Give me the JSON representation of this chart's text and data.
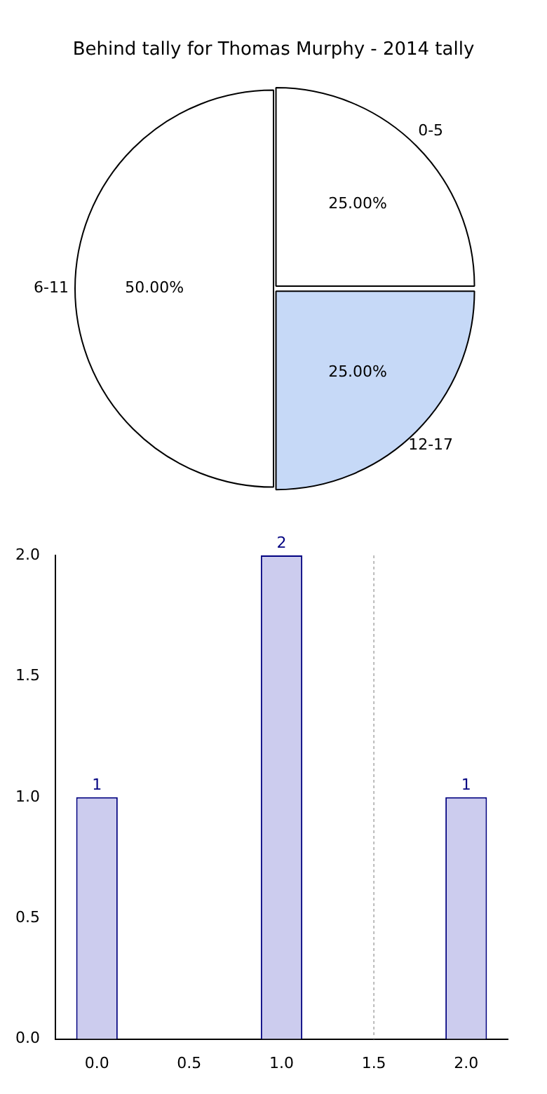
{
  "chart_data": [
    {
      "type": "pie",
      "title": "Behind tally for Thomas Murphy - 2014 tally",
      "categories": [
        "0-5",
        "12-17",
        "6-11"
      ],
      "values": [
        25,
        25,
        50
      ],
      "colors": [
        "#ffffff",
        "#c6d9f7",
        "#ffffff"
      ],
      "value_labels": [
        "25.00%",
        "25.00%",
        "50.00%"
      ]
    },
    {
      "type": "bar",
      "x": [
        0,
        1,
        2
      ],
      "values": [
        1,
        2,
        1
      ],
      "color": "#ccccee",
      "data_labels": true,
      "xlim": [
        -0.225,
        2.225
      ],
      "xticks": [
        {
          "value": 0,
          "label": "0.0"
        },
        0.5,
        {
          "value": 1,
          "label": "1.0"
        },
        1.5,
        {
          "value": 2,
          "label": "2.0"
        }
      ],
      "ylim": [
        0,
        2
      ],
      "yticks": [
        {
          "value": 0,
          "label": "0.0"
        },
        0.5,
        {
          "value": 1,
          "label": "1.0"
        },
        1.5,
        {
          "value": 2,
          "label": "2.0"
        }
      ],
      "ref_lines": [
        {
          "axis": "x",
          "value": 1.5,
          "color": "#bbbbbb",
          "line_style": "dotted"
        }
      ]
    }
  ]
}
